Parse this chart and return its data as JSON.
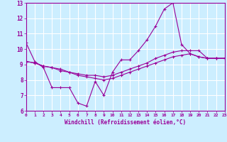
{
  "xlabel": "Windchill (Refroidissement éolien,°C)",
  "background_color": "#cceeff",
  "grid_color": "#ffffff",
  "line_color": "#990099",
  "xlim": [
    0,
    23
  ],
  "ylim": [
    6,
    13
  ],
  "yticks": [
    6,
    7,
    8,
    9,
    10,
    11,
    12,
    13
  ],
  "xticks": [
    0,
    1,
    2,
    3,
    4,
    5,
    6,
    7,
    8,
    9,
    10,
    11,
    12,
    13,
    14,
    15,
    16,
    17,
    18,
    19,
    20,
    21,
    22,
    23
  ],
  "series1_x": [
    0,
    1,
    2,
    3,
    4,
    5,
    6,
    7,
    8,
    9,
    10,
    11,
    12,
    13,
    14,
    15,
    16,
    17,
    18,
    19,
    20,
    21,
    22,
    23
  ],
  "series1_y": [
    10.4,
    9.2,
    8.8,
    7.5,
    7.5,
    7.5,
    6.5,
    6.3,
    7.9,
    7.0,
    8.5,
    9.3,
    9.3,
    9.9,
    10.6,
    11.5,
    12.6,
    13.0,
    10.3,
    9.7,
    9.5,
    9.4,
    9.4,
    9.4
  ],
  "series2_x": [
    0,
    1,
    2,
    3,
    4,
    5,
    6,
    7,
    8,
    9,
    10,
    11,
    12,
    13,
    14,
    15,
    16,
    17,
    18,
    19,
    20,
    21,
    22,
    23
  ],
  "series2_y": [
    9.2,
    9.1,
    8.9,
    8.8,
    8.6,
    8.5,
    8.4,
    8.3,
    8.3,
    8.2,
    8.3,
    8.5,
    8.7,
    8.9,
    9.1,
    9.4,
    9.6,
    9.8,
    9.9,
    9.9,
    9.9,
    9.4,
    9.4,
    9.4
  ],
  "series3_x": [
    0,
    1,
    2,
    3,
    4,
    5,
    6,
    7,
    8,
    9,
    10,
    11,
    12,
    13,
    14,
    15,
    16,
    17,
    18,
    19,
    20,
    21,
    22,
    23
  ],
  "series3_y": [
    9.2,
    9.1,
    8.9,
    8.8,
    8.7,
    8.5,
    8.3,
    8.2,
    8.1,
    8.0,
    8.1,
    8.3,
    8.5,
    8.7,
    8.9,
    9.1,
    9.3,
    9.5,
    9.6,
    9.7,
    9.5,
    9.4,
    9.4,
    9.4
  ]
}
